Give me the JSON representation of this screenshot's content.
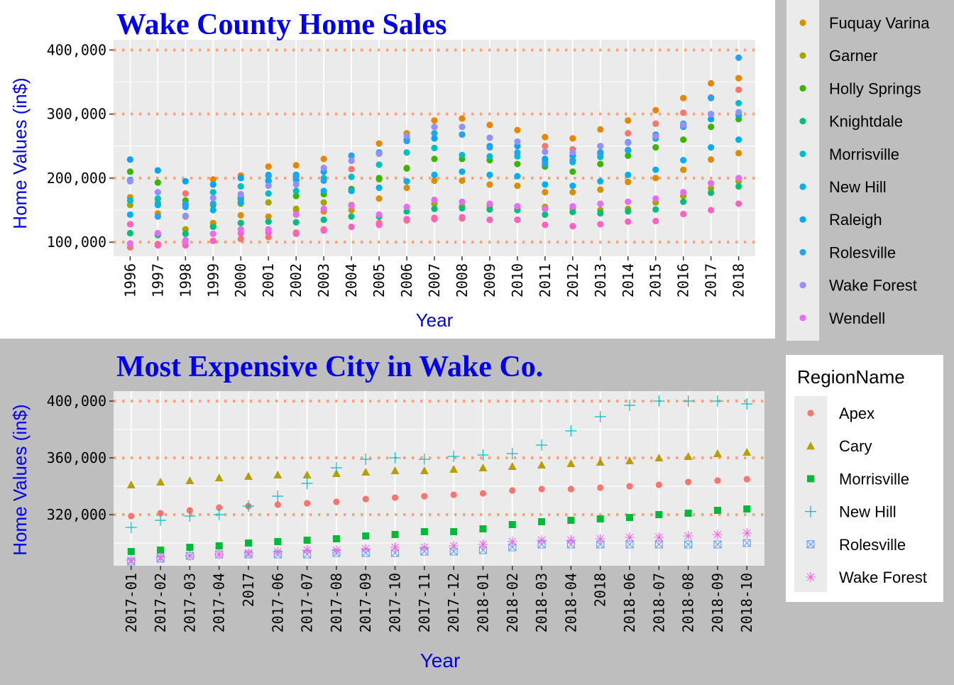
{
  "charts": {
    "top": {
      "title": "Wake County Home Sales",
      "ylabel": "Home Values (in$)",
      "xlabel": "Year",
      "y_ticks": [
        "100,000",
        "200,000",
        "300,000",
        "400,000"
      ]
    },
    "bottom": {
      "title": "Most Expensive City in Wake Co.",
      "ylabel": "Home Values (in$)",
      "xlabel": "Year",
      "y_ticks": [
        "320,000",
        "360,000",
        "400,000"
      ],
      "legend_title": "RegionName"
    }
  },
  "chart_data": [
    {
      "type": "scatter",
      "title": "Wake County Home Sales",
      "xlabel": "Year",
      "ylabel": "Home Values (in$)",
      "ylim": [
        78000,
        416000
      ],
      "yticks": [
        100000,
        200000,
        300000,
        400000
      ],
      "categories": [
        "1996",
        "1997",
        "1998",
        "1999",
        "2000",
        "2001",
        "2002",
        "2003",
        "2004",
        "2005",
        "2006",
        "2007",
        "2008",
        "2009",
        "2010",
        "2011",
        "2012",
        "2013",
        "2014",
        "2015",
        "2016",
        "2017",
        "2018"
      ],
      "grid": true,
      "legend": "right",
      "series": [
        {
          "name": "Fuquay Varina",
          "color": "#D89000",
          "values": [
            170000,
            145000,
            140000,
            130000,
            142000,
            140000,
            150000,
            148000,
            150000,
            168000,
            185000,
            196000,
            196000,
            190000,
            188000,
            178000,
            178000,
            182000,
            194000,
            200000,
            213000,
            229000,
            239000
          ]
        },
        {
          "name": "Garner",
          "color": "#A3A500",
          "values": [
            158000,
            162000,
            120000,
            125000,
            160000,
            162000,
            152000,
            162000,
            158000,
            198000,
            216000,
            160000,
            156000,
            156000,
            152000,
            155000,
            153000,
            150000,
            152000,
            162000,
            172000,
            184000,
            195000
          ]
        },
        {
          "name": "Holly Springs",
          "color": "#39B600",
          "values": [
            210000,
            193000,
            165000,
            158000,
            167000,
            196000,
            172000,
            175000,
            183000,
            200000,
            215000,
            230000,
            230000,
            228000,
            222000,
            218000,
            210000,
            222000,
            235000,
            248000,
            260000,
            280000,
            292000
          ]
        },
        {
          "name": "Knightdale",
          "color": "#00BF7D",
          "values": [
            114000,
            111000,
            113000,
            124000,
            130000,
            132000,
            131000,
            135000,
            140000,
            140000,
            148000,
            152000,
            153000,
            151000,
            150000,
            143000,
            147000,
            145000,
            148000,
            151000,
            163000,
            177000,
            187000
          ]
        },
        {
          "name": "Morrisville",
          "color": "#00BFC4",
          "values": [
            165000,
            168000,
            158000,
            178000,
            187000,
            176000,
            180000,
            200000,
            202000,
            221000,
            240000,
            247000,
            236000,
            234000,
            234000,
            226000,
            225000,
            233000,
            243000,
            265000,
            285000,
            300000,
            317000
          ]
        },
        {
          "name": "New Hill",
          "color": "#00B0F6",
          "values": [
            143000,
            158000,
            155000,
            150000,
            162000,
            195000,
            197000,
            180000,
            180000,
            185000,
            195000,
            205000,
            210000,
            205000,
            203000,
            190000,
            188000,
            195000,
            205000,
            213000,
            228000,
            248000,
            260000
          ]
        },
        {
          "name": "Raleigh",
          "color": "#00A5FF",
          "values": [
            229000,
            212000,
            195000,
            190000,
            200000,
            205000,
            205000,
            210000,
            235000,
            240000,
            260000,
            262000,
            268000,
            250000,
            250000,
            230000,
            235000,
            240000,
            256000,
            262000,
            282000,
            292000,
            298000
          ]
        },
        {
          "name": "Rolesville",
          "color": "#27A2F0",
          "values": [
            197000,
            140000,
            160000,
            160000,
            170000,
            203000,
            203000,
            196000,
            235000,
            240000,
            258000,
            270000,
            268000,
            248000,
            240000,
            222000,
            228000,
            238000,
            244000,
            268000,
            280000,
            325000,
            388000
          ]
        },
        {
          "name": "Wake Forest",
          "color": "#9590FF",
          "values": [
            195000,
            178000,
            141000,
            169000,
            175000,
            188000,
            190000,
            216000,
            227000,
            238000,
            266000,
            280000,
            280000,
            263000,
            257000,
            241000,
            240000,
            250000,
            255000,
            265000,
            283000,
            300000,
            303000
          ]
        },
        {
          "name": "Wendell",
          "color": "#E76BF3",
          "values": [
            98000,
            114000,
            103000,
            113000,
            120000,
            120000,
            143000,
            152000,
            157000,
            143000,
            155000,
            166000,
            163000,
            160000,
            156000,
            152000,
            156000,
            160000,
            163000,
            168000,
            178000,
            192000,
            200000
          ]
        }
      ],
      "extra_series": [
        {
          "name": "",
          "color": "#E58700",
          "values": [
            null,
            null,
            null,
            198000,
            204000,
            218000,
            220000,
            230000,
            null,
            254000,
            270000,
            290000,
            293000,
            283000,
            275000,
            264000,
            262000,
            276000,
            290000,
            306000,
            325000,
            348000,
            356000
          ]
        },
        {
          "name": "",
          "color": "#F8766D",
          "values": [
            92000,
            97000,
            176000,
            102000,
            105000,
            108000,
            115000,
            120000,
            214000,
            130000,
            134000,
            138000,
            137000,
            135000,
            135000,
            250000,
            245000,
            250000,
            270000,
            285000,
            302000,
            326000,
            338000
          ]
        },
        {
          "name": "",
          "color": "#FF62BC",
          "values": [
            128000,
            95000,
            95000,
            102000,
            114000,
            115000,
            113000,
            118000,
            124000,
            127000,
            136000,
            136000,
            139000,
            135000,
            135000,
            127000,
            125000,
            128000,
            132000,
            133000,
            144000,
            150000,
            160000
          ]
        }
      ]
    },
    {
      "type": "scatter",
      "title": "Most Expensive City in Wake Co.",
      "xlabel": "Year",
      "ylabel": "Home Values (in$)",
      "ylim": [
        284000,
        407000
      ],
      "yticks": [
        320000,
        360000,
        400000
      ],
      "categories": [
        "2017-01",
        "2017-02",
        "2017-03",
        "2017-04",
        "2017",
        "2017-06",
        "2017-07",
        "2017-08",
        "2017-09",
        "2017-10",
        "2017-11",
        "2017-12",
        "2018-01",
        "2018-02",
        "2018-03",
        "2018-04",
        "2018",
        "2018-06",
        "2018-07",
        "2018-08",
        "2018-09",
        "2018-10"
      ],
      "grid": true,
      "legend": "right",
      "legend_title": "RegionName",
      "series": [
        {
          "name": "Apex",
          "shape": "circle",
          "color": "#F8766D",
          "values": [
            319000,
            321000,
            323000,
            325000,
            326000,
            327000,
            328000,
            329000,
            331000,
            332000,
            333000,
            334000,
            335000,
            337000,
            338000,
            338000,
            339000,
            340000,
            341000,
            343000,
            344000,
            345000
          ]
        },
        {
          "name": "Cary",
          "shape": "triangle",
          "color": "#B79F00",
          "values": [
            341000,
            343000,
            344000,
            346000,
            347000,
            348000,
            348000,
            349000,
            350000,
            351000,
            351000,
            352000,
            353000,
            354000,
            355000,
            356000,
            357000,
            358000,
            360000,
            361000,
            363000,
            364000
          ]
        },
        {
          "name": "Morrisville",
          "shape": "square",
          "color": "#00BA38",
          "values": [
            294000,
            295000,
            297000,
            298000,
            300000,
            301000,
            302000,
            303000,
            305000,
            306000,
            308000,
            308000,
            310000,
            313000,
            315000,
            316000,
            317000,
            318000,
            320000,
            321000,
            323000,
            324000
          ]
        },
        {
          "name": "New Hill",
          "shape": "plus",
          "color": "#00BFC4",
          "values": [
            311000,
            316000,
            319000,
            320000,
            326000,
            333000,
            342000,
            353000,
            359000,
            360000,
            359000,
            361000,
            362000,
            363000,
            369000,
            379000,
            389000,
            397000,
            400000,
            400000,
            400000,
            398000
          ]
        },
        {
          "name": "Rolesville",
          "shape": "square-x",
          "color": "#619CFF",
          "values": [
            287000,
            289000,
            291000,
            292000,
            292000,
            292000,
            292000,
            293000,
            293000,
            293000,
            294000,
            294000,
            295000,
            297000,
            299000,
            299000,
            299000,
            299000,
            299000,
            299000,
            299000,
            300000
          ]
        },
        {
          "name": "Wake Forest",
          "shape": "asterisk",
          "color": "#F564E3",
          "values": [
            288000,
            290000,
            291000,
            292000,
            293000,
            294000,
            295000,
            295000,
            296000,
            297000,
            297000,
            298000,
            299000,
            301000,
            302000,
            302000,
            303000,
            304000,
            304000,
            305000,
            306000,
            307000
          ]
        }
      ]
    }
  ]
}
